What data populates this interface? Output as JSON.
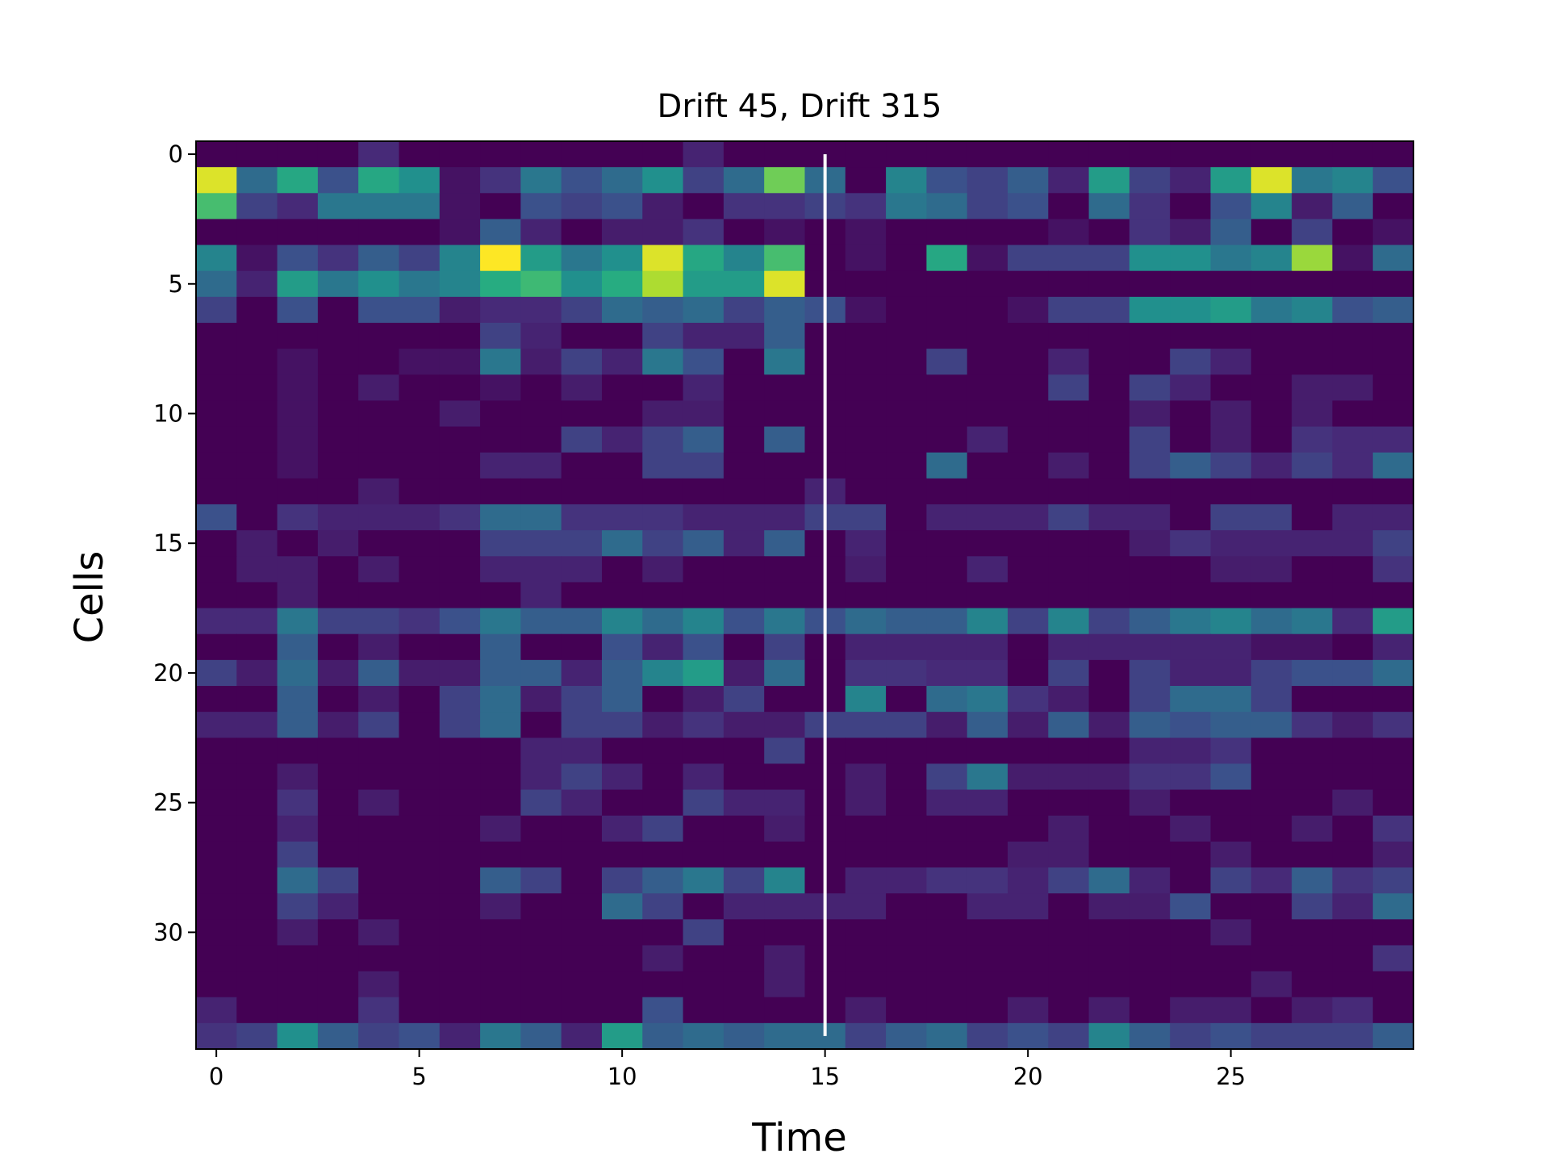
{
  "chart_data": {
    "type": "heatmap",
    "title": "Drift 45, Drift 315",
    "xlabel": "Time",
    "ylabel": "Cells",
    "x_ticks": [
      0,
      5,
      10,
      15,
      20,
      25
    ],
    "y_ticks": [
      0,
      5,
      10,
      15,
      20,
      25,
      30
    ],
    "x_range": [
      0,
      29
    ],
    "y_range": [
      0,
      34
    ],
    "colormap": "viridis",
    "vmin": 0,
    "vmax": 1,
    "marker_line_x": 15,
    "marker_line_color": "#ffffff",
    "values": [
      [
        0,
        0,
        0,
        0,
        0.12,
        0,
        0,
        0,
        0,
        0,
        0,
        0,
        0.1,
        0,
        0,
        0,
        0,
        0,
        0,
        0,
        0,
        0,
        0,
        0,
        0,
        0,
        0,
        0,
        0,
        0
      ],
      [
        0.95,
        0.35,
        0.6,
        0.25,
        0.6,
        0.5,
        0.05,
        0.15,
        0.4,
        0.25,
        0.35,
        0.5,
        0.2,
        0.35,
        0.78,
        0.35,
        0,
        0.45,
        0.25,
        0.2,
        0.3,
        0.1,
        0.55,
        0.2,
        0.1,
        0.55,
        0.95,
        0.4,
        0.45,
        0.25
      ],
      [
        0.7,
        0.2,
        0.12,
        0.4,
        0.4,
        0.4,
        0.05,
        0,
        0.25,
        0.2,
        0.25,
        0.08,
        0,
        0.15,
        0.15,
        0.2,
        0.15,
        0.4,
        0.35,
        0.2,
        0.25,
        0,
        0.35,
        0.15,
        0,
        0.25,
        0.45,
        0.08,
        0.3,
        0
      ],
      [
        0,
        0,
        0,
        0,
        0,
        0,
        0.05,
        0.3,
        0.1,
        0,
        0.08,
        0.08,
        0.15,
        0,
        0.05,
        0,
        0.05,
        0,
        0,
        0,
        0,
        0.05,
        0,
        0.15,
        0.08,
        0.3,
        0,
        0.2,
        0,
        0.05
      ],
      [
        0.45,
        0.05,
        0.25,
        0.15,
        0.3,
        0.2,
        0.45,
        1.0,
        0.55,
        0.4,
        0.5,
        0.95,
        0.6,
        0.45,
        0.7,
        0,
        0.05,
        0,
        0.6,
        0.05,
        0.2,
        0.2,
        0.2,
        0.5,
        0.5,
        0.4,
        0.45,
        0.85,
        0.05,
        0.35
      ],
      [
        0.35,
        0.1,
        0.55,
        0.4,
        0.5,
        0.4,
        0.45,
        0.62,
        0.68,
        0.5,
        0.62,
        0.88,
        0.55,
        0.55,
        0.95,
        0,
        0,
        0,
        0,
        0,
        0,
        0,
        0,
        0,
        0,
        0,
        0,
        0,
        0,
        0
      ],
      [
        0.2,
        0,
        0.25,
        0,
        0.25,
        0.25,
        0.08,
        0.12,
        0.12,
        0.2,
        0.35,
        0.3,
        0.35,
        0.2,
        0.3,
        0.25,
        0.05,
        0,
        0,
        0,
        0.05,
        0.2,
        0.2,
        0.5,
        0.5,
        0.55,
        0.4,
        0.45,
        0.25,
        0.3
      ],
      [
        0,
        0,
        0,
        0,
        0,
        0,
        0,
        0.2,
        0.1,
        0,
        0,
        0.2,
        0.1,
        0.1,
        0.3,
        0,
        0,
        0,
        0,
        0,
        0,
        0,
        0,
        0,
        0,
        0,
        0,
        0,
        0,
        0
      ],
      [
        0,
        0,
        0.05,
        0,
        0,
        0.05,
        0.05,
        0.4,
        0.08,
        0.2,
        0.1,
        0.4,
        0.25,
        0,
        0.4,
        0,
        0,
        0,
        0.2,
        0,
        0,
        0.1,
        0,
        0,
        0.2,
        0.1,
        0,
        0,
        0,
        0
      ],
      [
        0,
        0,
        0.05,
        0,
        0.08,
        0,
        0,
        0.05,
        0,
        0.08,
        0,
        0,
        0.1,
        0,
        0,
        0,
        0,
        0,
        0,
        0,
        0,
        0.2,
        0,
        0.2,
        0.1,
        0,
        0,
        0.08,
        0.08,
        0
      ],
      [
        0,
        0,
        0.05,
        0,
        0,
        0,
        0.08,
        0,
        0,
        0,
        0,
        0.08,
        0.08,
        0,
        0,
        0,
        0,
        0,
        0,
        0,
        0,
        0,
        0,
        0.08,
        0,
        0.08,
        0,
        0.08,
        0,
        0
      ],
      [
        0,
        0,
        0.05,
        0,
        0,
        0,
        0,
        0,
        0,
        0.2,
        0.1,
        0.2,
        0.3,
        0,
        0.3,
        0,
        0,
        0,
        0,
        0.1,
        0,
        0,
        0,
        0.2,
        0,
        0.08,
        0,
        0.15,
        0.12,
        0.12
      ],
      [
        0,
        0,
        0.05,
        0,
        0,
        0,
        0,
        0.1,
        0.1,
        0,
        0,
        0.2,
        0.2,
        0,
        0,
        0,
        0,
        0,
        0.35,
        0,
        0,
        0.08,
        0,
        0.2,
        0.3,
        0.2,
        0.1,
        0.2,
        0.12,
        0.35
      ],
      [
        0,
        0,
        0,
        0,
        0.08,
        0,
        0,
        0,
        0,
        0,
        0,
        0,
        0,
        0,
        0,
        0.1,
        0,
        0,
        0,
        0,
        0,
        0,
        0,
        0,
        0,
        0,
        0,
        0,
        0,
        0
      ],
      [
        0.25,
        0,
        0.15,
        0.1,
        0.1,
        0.1,
        0.15,
        0.35,
        0.35,
        0.15,
        0.15,
        0.15,
        0.1,
        0.1,
        0.1,
        0.2,
        0.2,
        0,
        0.1,
        0.1,
        0.1,
        0.2,
        0.1,
        0.1,
        0,
        0.2,
        0.2,
        0,
        0.1,
        0.1
      ],
      [
        0,
        0.08,
        0,
        0.08,
        0,
        0,
        0,
        0.2,
        0.2,
        0.2,
        0.35,
        0.2,
        0.3,
        0.1,
        0.3,
        0,
        0.1,
        0,
        0,
        0,
        0,
        0,
        0,
        0.08,
        0.15,
        0.1,
        0.1,
        0.1,
        0.1,
        0.2
      ],
      [
        0,
        0.08,
        0.08,
        0,
        0.08,
        0,
        0,
        0.1,
        0.1,
        0.1,
        0,
        0.08,
        0,
        0,
        0,
        0,
        0.08,
        0,
        0,
        0.1,
        0,
        0,
        0,
        0,
        0,
        0.08,
        0.08,
        0,
        0,
        0.15
      ],
      [
        0,
        0,
        0.08,
        0,
        0,
        0,
        0,
        0,
        0.1,
        0,
        0,
        0,
        0,
        0,
        0,
        0,
        0,
        0,
        0,
        0,
        0,
        0,
        0,
        0,
        0,
        0,
        0,
        0,
        0,
        0
      ],
      [
        0.12,
        0.12,
        0.4,
        0.2,
        0.2,
        0.15,
        0.25,
        0.4,
        0.3,
        0.3,
        0.45,
        0.35,
        0.45,
        0.25,
        0.4,
        0.25,
        0.35,
        0.3,
        0.3,
        0.45,
        0.2,
        0.45,
        0.2,
        0.3,
        0.4,
        0.45,
        0.35,
        0.4,
        0.12,
        0.55
      ],
      [
        0,
        0,
        0.3,
        0,
        0.08,
        0,
        0,
        0.3,
        0,
        0,
        0.25,
        0.1,
        0.25,
        0,
        0.2,
        0,
        0.1,
        0.1,
        0.1,
        0.1,
        0,
        0.1,
        0.1,
        0.1,
        0.1,
        0.1,
        0.05,
        0.05,
        0,
        0.1
      ],
      [
        0.2,
        0.08,
        0.35,
        0.08,
        0.3,
        0.08,
        0.08,
        0.3,
        0.3,
        0.1,
        0.3,
        0.45,
        0.55,
        0.08,
        0.35,
        0,
        0.15,
        0.15,
        0.12,
        0.12,
        0,
        0.2,
        0,
        0.2,
        0.1,
        0.1,
        0.2,
        0.25,
        0.25,
        0.35
      ],
      [
        0,
        0,
        0.3,
        0,
        0.08,
        0,
        0.2,
        0.35,
        0.08,
        0.2,
        0.3,
        0,
        0.08,
        0.2,
        0,
        0,
        0.45,
        0,
        0.35,
        0.4,
        0.15,
        0.08,
        0,
        0.2,
        0.35,
        0.35,
        0.2,
        0,
        0,
        0
      ],
      [
        0.1,
        0.1,
        0.3,
        0.08,
        0.2,
        0,
        0.2,
        0.35,
        0,
        0.2,
        0.2,
        0.08,
        0.15,
        0.08,
        0.08,
        0.2,
        0.2,
        0.2,
        0.08,
        0.3,
        0.08,
        0.3,
        0.08,
        0.3,
        0.25,
        0.3,
        0.3,
        0.15,
        0.08,
        0.15
      ],
      [
        0,
        0,
        0,
        0,
        0,
        0,
        0,
        0,
        0.1,
        0.1,
        0,
        0,
        0,
        0,
        0.2,
        0,
        0,
        0,
        0,
        0,
        0,
        0,
        0,
        0.1,
        0.1,
        0.15,
        0,
        0,
        0,
        0
      ],
      [
        0,
        0,
        0.08,
        0,
        0,
        0,
        0,
        0,
        0.1,
        0.2,
        0.1,
        0,
        0.1,
        0,
        0,
        0,
        0.08,
        0,
        0.2,
        0.4,
        0.08,
        0.08,
        0.08,
        0.15,
        0.15,
        0.25,
        0,
        0,
        0,
        0
      ],
      [
        0,
        0,
        0.15,
        0,
        0.08,
        0,
        0,
        0,
        0.2,
        0.1,
        0,
        0,
        0.2,
        0.1,
        0.1,
        0,
        0.08,
        0,
        0.1,
        0.1,
        0,
        0,
        0,
        0.08,
        0,
        0,
        0,
        0,
        0.08,
        0
      ],
      [
        0,
        0,
        0.1,
        0,
        0,
        0,
        0,
        0.08,
        0,
        0,
        0.1,
        0.2,
        0,
        0,
        0.08,
        0,
        0,
        0,
        0,
        0,
        0,
        0.08,
        0,
        0,
        0.08,
        0,
        0,
        0.08,
        0,
        0.15
      ],
      [
        0,
        0,
        0.2,
        0,
        0,
        0,
        0,
        0,
        0,
        0,
        0,
        0,
        0,
        0,
        0,
        0,
        0,
        0,
        0,
        0,
        0.08,
        0.08,
        0,
        0,
        0,
        0.08,
        0,
        0,
        0,
        0.08
      ],
      [
        0,
        0,
        0.35,
        0.2,
        0,
        0,
        0,
        0.3,
        0.2,
        0,
        0.2,
        0.3,
        0.4,
        0.2,
        0.45,
        0,
        0.1,
        0.1,
        0.15,
        0.15,
        0.1,
        0.2,
        0.35,
        0.1,
        0,
        0.2,
        0.12,
        0.3,
        0.15,
        0.2
      ],
      [
        0,
        0,
        0.2,
        0.1,
        0,
        0,
        0,
        0.08,
        0,
        0,
        0.35,
        0.2,
        0,
        0.1,
        0.1,
        0.1,
        0.1,
        0,
        0,
        0.1,
        0.1,
        0,
        0.08,
        0.08,
        0.25,
        0,
        0,
        0.2,
        0.1,
        0.35
      ],
      [
        0,
        0,
        0.08,
        0,
        0.08,
        0,
        0,
        0,
        0,
        0,
        0,
        0,
        0.2,
        0,
        0,
        0,
        0,
        0,
        0,
        0,
        0,
        0,
        0,
        0,
        0,
        0.08,
        0,
        0,
        0,
        0
      ],
      [
        0,
        0,
        0,
        0,
        0,
        0,
        0,
        0,
        0,
        0,
        0,
        0.08,
        0,
        0,
        0.08,
        0,
        0,
        0,
        0,
        0,
        0,
        0,
        0,
        0,
        0,
        0,
        0,
        0,
        0,
        0.15
      ],
      [
        0,
        0,
        0,
        0,
        0.08,
        0,
        0,
        0,
        0,
        0,
        0,
        0,
        0,
        0,
        0.08,
        0,
        0,
        0,
        0,
        0,
        0,
        0,
        0,
        0,
        0,
        0,
        0.08,
        0,
        0,
        0
      ],
      [
        0.1,
        0,
        0,
        0,
        0.15,
        0,
        0,
        0,
        0,
        0,
        0,
        0.25,
        0,
        0,
        0,
        0,
        0.08,
        0,
        0,
        0,
        0.08,
        0,
        0.08,
        0,
        0.08,
        0.08,
        0,
        0.08,
        0.12,
        0
      ],
      [
        0.15,
        0.2,
        0.5,
        0.3,
        0.2,
        0.25,
        0.1,
        0.4,
        0.3,
        0.1,
        0.55,
        0.3,
        0.35,
        0.3,
        0.35,
        0.35,
        0.2,
        0.3,
        0.35,
        0.2,
        0.25,
        0.2,
        0.45,
        0.3,
        0.2,
        0.25,
        0.2,
        0.2,
        0.2,
        0.3
      ]
    ]
  }
}
